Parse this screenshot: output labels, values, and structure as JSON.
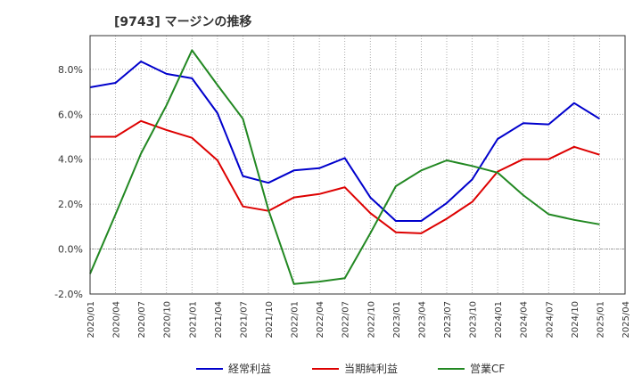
{
  "chart_data": {
    "type": "line",
    "title": "[9743]  マージンの推移",
    "categories": [
      "2020/01",
      "2020/04",
      "2020/07",
      "2020/10",
      "2021/01",
      "2021/04",
      "2021/07",
      "2021/10",
      "2022/01",
      "2022/04",
      "2022/07",
      "2022/10",
      "2023/01",
      "2023/04",
      "2023/07",
      "2023/10",
      "2024/01",
      "2024/04",
      "2024/07",
      "2024/10",
      "2025/01",
      "2025/04"
    ],
    "y_tick_labels": [
      "8.0%",
      "6.0%",
      "4.0%",
      "2.0%",
      "0.0%",
      "-2.0%"
    ],
    "y_ticks": [
      8,
      6,
      4,
      2,
      0,
      -2
    ],
    "ylim": [
      -2,
      9.5
    ],
    "grid": true,
    "legend_position": "bottom",
    "colors": {
      "keijo": "#0000cc",
      "junri": "#dd0000",
      "cf": "#228822"
    },
    "series": [
      {
        "key": "keijo",
        "name": "経常利益",
        "values": [
          7.2,
          7.4,
          8.35,
          7.8,
          7.6,
          6.05,
          3.25,
          2.95,
          3.5,
          3.6,
          4.05,
          2.3,
          1.25,
          1.25,
          2.05,
          3.1,
          4.9,
          5.6,
          5.55,
          6.5,
          5.8,
          null
        ]
      },
      {
        "key": "junri",
        "name": "当期純利益",
        "values": [
          5.0,
          5.0,
          5.7,
          5.3,
          4.95,
          3.95,
          1.9,
          1.7,
          2.3,
          2.45,
          2.75,
          1.6,
          0.75,
          0.7,
          1.35,
          2.1,
          3.45,
          4.0,
          4.0,
          4.55,
          4.2,
          null
        ]
      },
      {
        "key": "cf",
        "name": "営業CF",
        "values": [
          -1.1,
          1.55,
          4.25,
          6.4,
          8.85,
          7.3,
          5.8,
          1.75,
          -1.55,
          -1.45,
          -1.3,
          0.7,
          2.8,
          3.5,
          3.95,
          3.7,
          3.4,
          2.4,
          1.55,
          1.3,
          1.1,
          null
        ]
      }
    ]
  }
}
